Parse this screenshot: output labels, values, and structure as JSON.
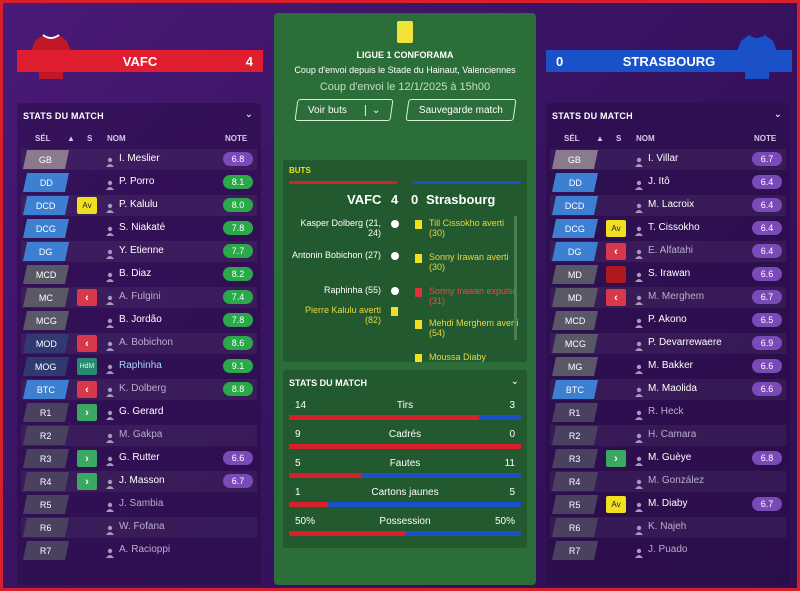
{
  "home": {
    "name": "VAFC",
    "score": "4",
    "shirt_color": "#c01828"
  },
  "away": {
    "name": "STRASBOURG",
    "score": "0",
    "shirt_color": "#1a50c8",
    "shirt_logo": "es"
  },
  "center": {
    "competition": "LIGUE 1 CONFORAMA",
    "venue": "Coup d'envoi depuis le Stade du Hainaut, Valenciennes",
    "kickoff": "Coup d'envoi le 12/1/2025 à 15h00",
    "btn_view": "Voir buts",
    "btn_save": "Sauvegarde match",
    "goals_title": "BUTS",
    "score_home": "VAFC",
    "score_h": "4",
    "score_a": "0",
    "score_away": "Strasbourg",
    "events_left": [
      {
        "text": "Kasper Dolberg (21, 24)",
        "icon": "ball"
      },
      {
        "text": "Antonin Bobichon (27)",
        "icon": "ball"
      },
      {
        "text": "Raphinha (55)",
        "icon": "ball"
      },
      {
        "text": "Pierre Kalulu averti (82)",
        "icon": "yellow"
      }
    ],
    "events_right": [
      {
        "text": "Till Cissokho averti (30)",
        "icon": "yellow"
      },
      {
        "text": "Sonny Irawan averti (30)",
        "icon": "yellow"
      },
      {
        "text": "Sonny Irawan expulsé (31)",
        "icon": "red"
      },
      {
        "text": "Mehdi Merghem averti (54)",
        "icon": "yellow"
      },
      {
        "text": "Moussa Diaby",
        "icon": "yellow"
      }
    ],
    "stats_title": "STATS DU MATCH",
    "stats": [
      {
        "label": "Tirs",
        "home": "14",
        "away": "3",
        "share": 0.82
      },
      {
        "label": "Cadrés",
        "home": "9",
        "away": "0",
        "share": 1.0
      },
      {
        "label": "Fautes",
        "home": "5",
        "away": "11",
        "share": 0.31
      },
      {
        "label": "Cartons jaunes",
        "home": "1",
        "away": "5",
        "share": 0.17
      },
      {
        "label": "Possession",
        "home": "50%",
        "away": "50%",
        "share": 0.5
      }
    ]
  },
  "left_panel": {
    "title": "STATS DU MATCH",
    "headers": {
      "sel": "SÉL",
      "s": "S",
      "nom": "NOM",
      "note": "NOTE"
    },
    "players": [
      {
        "pos": "GB",
        "badge": "",
        "name": "I. Meslier",
        "note": "6.8",
        "nc": "purple",
        "pc": "gk"
      },
      {
        "pos": "DD",
        "badge": "",
        "name": "P. Porro",
        "note": "8.1",
        "nc": "green",
        "pc": "df"
      },
      {
        "pos": "DCD",
        "badge": "Av",
        "name": "P. Kalulu",
        "note": "8.0",
        "nc": "green",
        "pc": "df"
      },
      {
        "pos": "DCG",
        "badge": "",
        "name": "S. Niakaté",
        "note": "7.8",
        "nc": "green",
        "pc": "df"
      },
      {
        "pos": "DG",
        "badge": "",
        "name": "Y. Etienne",
        "note": "7.7",
        "nc": "green",
        "pc": "df"
      },
      {
        "pos": "MCD",
        "badge": "",
        "name": "B. Diaz",
        "note": "8.2",
        "nc": "green",
        "pc": "mf"
      },
      {
        "pos": "MC",
        "badge": "<",
        "name": "A. Fulgini",
        "note": "7.4",
        "nc": "green",
        "pc": "mf",
        "dim": true
      },
      {
        "pos": "MCG",
        "badge": "",
        "name": "B. Jordão",
        "note": "7.8",
        "nc": "green",
        "pc": "mf"
      },
      {
        "pos": "MOD",
        "badge": "<",
        "name": "A. Bobichon",
        "note": "8.6",
        "nc": "green",
        "pc": "fw",
        "dim": true
      },
      {
        "pos": "MOG",
        "badge": "HdM",
        "name": "Raphinha",
        "note": "9.1",
        "nc": "green",
        "pc": "fw",
        "hl": true
      },
      {
        "pos": "BTC",
        "badge": "<",
        "name": "K. Dolberg",
        "note": "8.8",
        "nc": "green",
        "pc": "df",
        "dim": true
      },
      {
        "pos": "R1",
        "badge": ">",
        "name": "G. Gerard",
        "note": "",
        "nc": "",
        "pc": "sub"
      },
      {
        "pos": "R2",
        "badge": "",
        "name": "M. Gakpa",
        "note": "",
        "nc": "",
        "pc": "sub",
        "dim": true
      },
      {
        "pos": "R3",
        "badge": ">",
        "name": "G. Rutter",
        "note": "6.6",
        "nc": "purple",
        "pc": "sub"
      },
      {
        "pos": "R4",
        "badge": ">",
        "name": "J. Masson",
        "note": "6.7",
        "nc": "purple",
        "pc": "sub"
      },
      {
        "pos": "R5",
        "badge": "",
        "name": "J. Sambia",
        "note": "",
        "nc": "",
        "pc": "sub",
        "dim": true
      },
      {
        "pos": "R6",
        "badge": "",
        "name": "W. Fofana",
        "note": "",
        "nc": "",
        "pc": "sub",
        "dim": true
      },
      {
        "pos": "R7",
        "badge": "",
        "name": "A. Racioppi",
        "note": "",
        "nc": "",
        "pc": "sub",
        "dim": true
      }
    ]
  },
  "right_panel": {
    "title": "STATS DU MATCH",
    "headers": {
      "sel": "SÉL",
      "s": "S",
      "nom": "NOM",
      "note": "NOTE"
    },
    "players": [
      {
        "pos": "GB",
        "badge": "",
        "name": "I. Villar",
        "note": "6.7",
        "nc": "purple",
        "pc": "gk"
      },
      {
        "pos": "DD",
        "badge": "",
        "name": "J. Itô",
        "note": "6.4",
        "nc": "purple",
        "pc": "df"
      },
      {
        "pos": "DCD",
        "badge": "",
        "name": "M. Lacroix",
        "note": "6.4",
        "nc": "purple",
        "pc": "df"
      },
      {
        "pos": "DCG",
        "badge": "Av",
        "name": "T. Cissokho",
        "note": "6.4",
        "nc": "purple",
        "pc": "df"
      },
      {
        "pos": "DG",
        "badge": "<",
        "name": "E. Alfatahi",
        "note": "6.4",
        "nc": "purple",
        "pc": "df",
        "dim": true
      },
      {
        "pos": "MD",
        "badge": "red",
        "name": "S. Irawan",
        "note": "6.6",
        "nc": "purple",
        "pc": "mf"
      },
      {
        "pos": "MD",
        "badge": "<",
        "name": "M. Merghem",
        "note": "6.7",
        "nc": "purple",
        "pc": "mf",
        "dim": true
      },
      {
        "pos": "MCD",
        "badge": "",
        "name": "P. Akono",
        "note": "6.5",
        "nc": "purple",
        "pc": "mf"
      },
      {
        "pos": "MCG",
        "badge": "",
        "name": "P. Devarrewaere",
        "note": "6.9",
        "nc": "purple",
        "pc": "mf"
      },
      {
        "pos": "MG",
        "badge": "",
        "name": "M. Bakker",
        "note": "6.6",
        "nc": "purple",
        "pc": "mf"
      },
      {
        "pos": "BTC",
        "badge": "",
        "name": "M. Maolida",
        "note": "6.6",
        "nc": "purple",
        "pc": "df"
      },
      {
        "pos": "R1",
        "badge": "",
        "name": "R. Heck",
        "note": "",
        "nc": "",
        "pc": "sub",
        "dim": true
      },
      {
        "pos": "R2",
        "badge": "",
        "name": "H. Camara",
        "note": "",
        "nc": "",
        "pc": "sub",
        "dim": true
      },
      {
        "pos": "R3",
        "badge": ">",
        "name": "M. Guèye",
        "note": "6.8",
        "nc": "purple",
        "pc": "sub"
      },
      {
        "pos": "R4",
        "badge": "",
        "name": "M. González",
        "note": "",
        "nc": "",
        "pc": "sub",
        "dim": true
      },
      {
        "pos": "R5",
        "badge": "Av",
        "name": "M. Diaby",
        "note": "6.7",
        "nc": "purple",
        "pc": "sub"
      },
      {
        "pos": "R6",
        "badge": "",
        "name": "K. Najeh",
        "note": "",
        "nc": "",
        "pc": "sub",
        "dim": true
      },
      {
        "pos": "R7",
        "badge": "",
        "name": "J. Puado",
        "note": "",
        "nc": "",
        "pc": "sub",
        "dim": true
      }
    ]
  }
}
